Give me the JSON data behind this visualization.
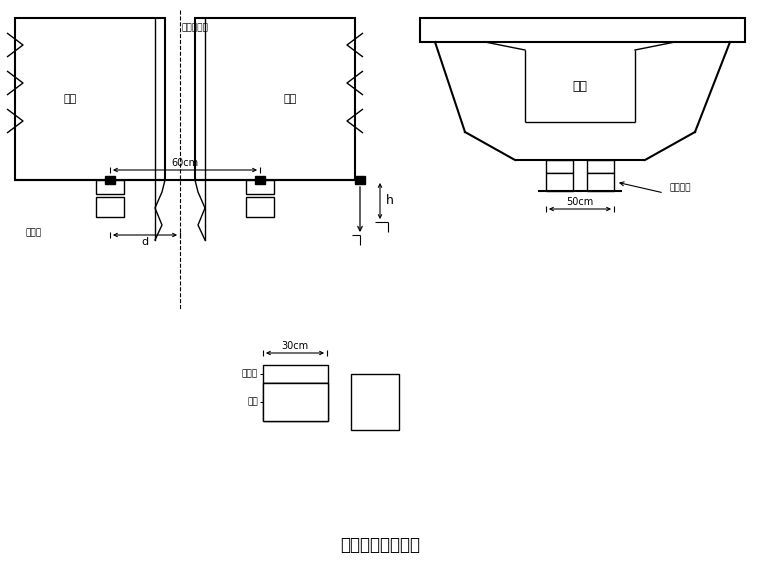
{
  "title": "非连续端临时支座",
  "title_fontsize": 12,
  "bg_color": "#ffffff",
  "line_color": "#000000",
  "label_zuliang": "主梁",
  "label_zhongxian": "桥棁中心线",
  "label_d": "d",
  "label_h": "h",
  "label_60cm": "60cm",
  "label_50cm": "50cm",
  "label_30cm": "30cm",
  "label_gangban": "钓板垂",
  "label_nacha": "纳砂",
  "label_jianpi": "剧切距",
  "label_zhicheng": "支承垒压"
}
